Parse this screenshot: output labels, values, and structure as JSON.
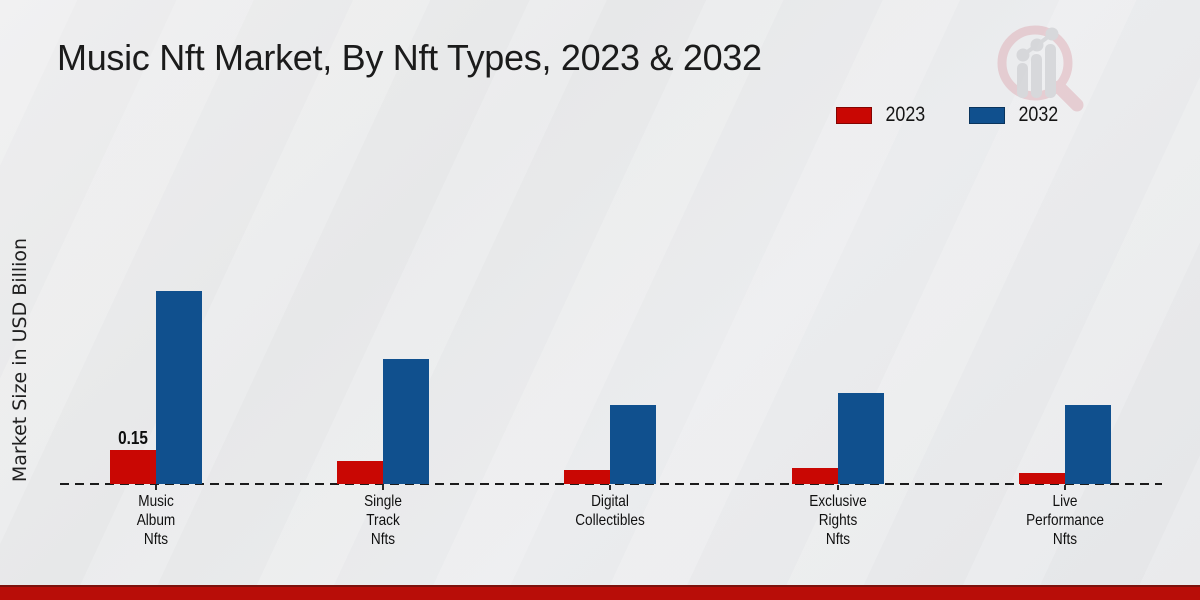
{
  "title": "Music Nft Market, By Nft Types, 2023 & 2032",
  "chart_data": {
    "type": "bar",
    "title": "Music Nft Market, By Nft Types, 2023 & 2032",
    "xlabel": "",
    "ylabel": "Market Size in USD Billion",
    "categories": [
      "Music Album Nfts",
      "Single Track Nfts",
      "Digital Collectibles",
      "Exclusive Rights Nfts",
      "Live Performance Nfts"
    ],
    "category_label_lines": [
      [
        "Music",
        "Album",
        "Nfts"
      ],
      [
        "Single",
        "Track",
        "Nfts"
      ],
      [
        "Digital",
        "Collectibles"
      ],
      [
        "Exclusive",
        "Rights",
        "Nfts"
      ],
      [
        "Live",
        "Performance",
        "Nfts"
      ]
    ],
    "series": [
      {
        "name": "2023",
        "color": "#c90703",
        "values": [
          0.15,
          0.1,
          0.06,
          0.07,
          0.05
        ]
      },
      {
        "name": "2032",
        "color": "#10508e",
        "values": [
          0.85,
          0.55,
          0.35,
          0.4,
          0.35
        ]
      }
    ],
    "value_labels": [
      {
        "series_index": 0,
        "category_index": 0,
        "text": "0.15"
      }
    ],
    "ylim": [
      0,
      0.9
    ],
    "grid": false,
    "baseline_style": "dashed",
    "legend_position": "top-right"
  },
  "colors": {
    "series_2023": "#c90703",
    "series_2032": "#10508e",
    "footer_bar": "#b80d08",
    "background": "#e8e9ea",
    "logo_ring": "#dfb3ba",
    "logo_bars": "#c5c6ca"
  },
  "icons": {
    "logo": "analytics-magnifier-logo"
  }
}
